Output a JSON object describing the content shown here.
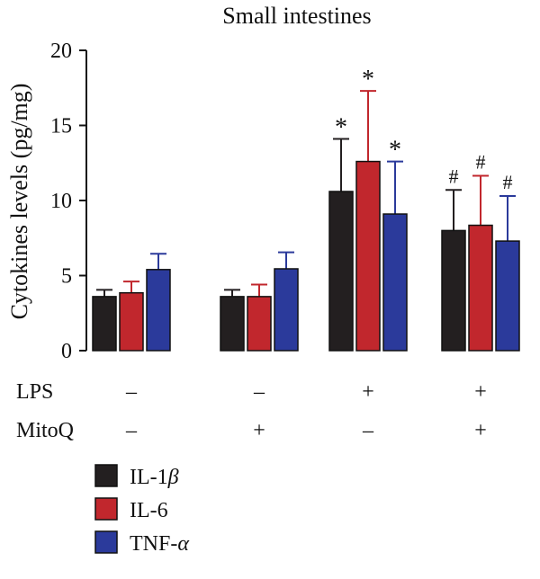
{
  "chart_data": {
    "type": "bar",
    "title": "Small intestines",
    "ylabel": "Cytokines levels (pg/mg)",
    "xlabel": "",
    "ylim": [
      0,
      20
    ],
    "yticks": [
      0,
      5,
      10,
      15,
      20
    ],
    "grid": false,
    "legend_position": "bottom-left",
    "groups": [
      {
        "lps": "–",
        "mitoq": "–"
      },
      {
        "lps": "–",
        "mitoq": "+"
      },
      {
        "lps": "+",
        "mitoq": "–"
      },
      {
        "lps": "+",
        "mitoq": "+"
      }
    ],
    "row_labels": {
      "lps": "LPS",
      "mitoq": "MitoQ"
    },
    "series": [
      {
        "name": "IL-1β",
        "name_base": "IL-1",
        "name_greek": "β",
        "color": "#231f20",
        "values": [
          3.6,
          3.6,
          10.6,
          8.0
        ],
        "errors": [
          0.45,
          0.45,
          3.5,
          2.7
        ],
        "annotations": [
          "",
          "",
          "*",
          "#"
        ]
      },
      {
        "name": "IL-6",
        "name_base": "IL-6",
        "name_greek": "",
        "color": "#c1272d",
        "values": [
          3.85,
          3.6,
          12.6,
          8.35
        ],
        "errors": [
          0.75,
          0.8,
          4.7,
          3.3
        ],
        "annotations": [
          "",
          "",
          "*",
          "#"
        ]
      },
      {
        "name": "TNF-α",
        "name_base": "TNF-",
        "name_greek": "α",
        "color": "#2b3a9b",
        "values": [
          5.4,
          5.45,
          9.1,
          7.3
        ],
        "errors": [
          1.05,
          1.1,
          3.5,
          3.0
        ],
        "annotations": [
          "",
          "",
          "*",
          "#"
        ]
      }
    ]
  }
}
